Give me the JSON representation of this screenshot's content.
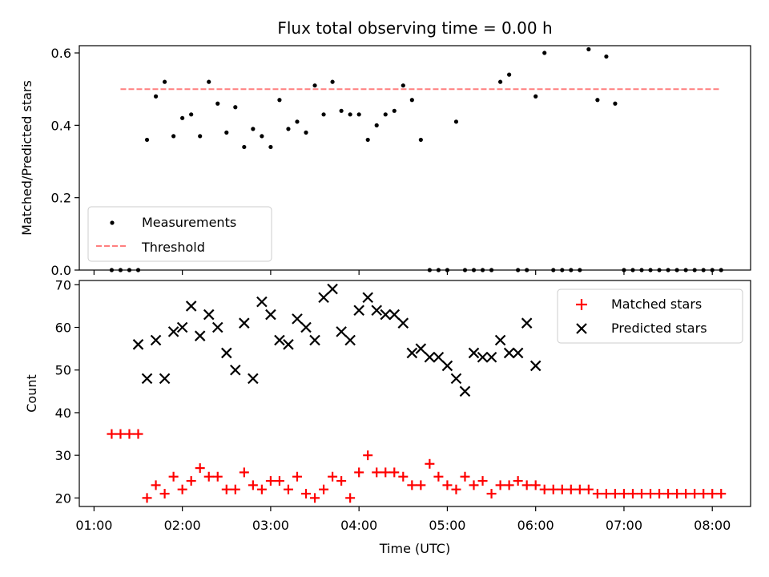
{
  "chart_data": [
    {
      "type": "scatter",
      "title": "Flux total observing time = 0.00 h",
      "xlabel": "",
      "ylabel": "Matched/Predicted stars",
      "ylim": [
        0,
        0.62
      ],
      "yticks": [
        "0.0",
        "0.2",
        "0.4",
        "0.6"
      ],
      "legend_position": "lower-left",
      "threshold": {
        "name": "Threshold",
        "value": 0.5,
        "x_start": "01:18",
        "x_end": "08:05",
        "color": "#ff7f7f"
      },
      "series": [
        {
          "name": "Measurements",
          "color": "#000000",
          "x": [
            "01:12",
            "01:18",
            "01:24",
            "01:30",
            "01:36",
            "01:42",
            "01:48",
            "01:54",
            "02:00",
            "02:06",
            "02:12",
            "02:18",
            "02:24",
            "02:30",
            "02:36",
            "02:42",
            "02:48",
            "02:54",
            "03:00",
            "03:06",
            "03:12",
            "03:18",
            "03:24",
            "03:30",
            "03:36",
            "03:42",
            "03:48",
            "03:54",
            "04:00",
            "04:06",
            "04:12",
            "04:18",
            "04:24",
            "04:30",
            "04:36",
            "04:42",
            "04:48",
            "04:54",
            "05:00",
            "05:06",
            "05:12",
            "05:18",
            "05:24",
            "05:30",
            "05:36",
            "05:42",
            "05:48",
            "05:54",
            "06:00",
            "06:06",
            "06:12",
            "06:18",
            "06:24",
            "06:30",
            "06:36",
            "06:42",
            "06:48",
            "06:54",
            "07:00",
            "07:06",
            "07:12",
            "07:18",
            "07:24",
            "07:30",
            "07:36",
            "07:42",
            "07:48",
            "07:54",
            "08:00",
            "08:06"
          ],
          "values": [
            0,
            0,
            0,
            0,
            0.36,
            0.48,
            0.52,
            0.37,
            0.42,
            0.43,
            0.37,
            0.52,
            0.46,
            0.38,
            0.45,
            0.34,
            0.39,
            0.37,
            0.34,
            0.47,
            0.39,
            0.41,
            0.38,
            0.51,
            0.43,
            0.52,
            0.44,
            0.43,
            0.43,
            0.36,
            0.4,
            0.43,
            0.44,
            0.51,
            0.47,
            0.36,
            0.0,
            0.0,
            0.0,
            0.41,
            0.0,
            0.0,
            0.0,
            0.0,
            0.52,
            0.54,
            0.0,
            0.0,
            0.48,
            0.6,
            0.0,
            0.0,
            0.0,
            0.0,
            0.61,
            0.47,
            0.59,
            0.46,
            0.0,
            0.0,
            0.0,
            0.0,
            0.0,
            0.0,
            0.0,
            0.0,
            0.0,
            0.0,
            0.0,
            0.0
          ]
        }
      ]
    },
    {
      "type": "scatter",
      "title": "",
      "xlabel": "Time (UTC)",
      "ylabel": "Count",
      "ylim": [
        18,
        71
      ],
      "yticks": [
        "20",
        "30",
        "40",
        "50",
        "60",
        "70"
      ],
      "xticks": [
        "01:00",
        "02:00",
        "03:00",
        "04:00",
        "05:00",
        "06:00",
        "07:00",
        "08:00"
      ],
      "xlim": [
        "00:50",
        "08:26"
      ],
      "legend_position": "top-right",
      "series": [
        {
          "name": "Matched stars",
          "marker": "+",
          "color": "#ff0000",
          "x": [
            "01:12",
            "01:18",
            "01:24",
            "01:30",
            "01:36",
            "01:42",
            "01:48",
            "01:54",
            "02:00",
            "02:06",
            "02:12",
            "02:18",
            "02:24",
            "02:30",
            "02:36",
            "02:42",
            "02:48",
            "02:54",
            "03:00",
            "03:06",
            "03:12",
            "03:18",
            "03:24",
            "03:30",
            "03:36",
            "03:42",
            "03:48",
            "03:54",
            "04:00",
            "04:06",
            "04:12",
            "04:18",
            "04:24",
            "04:30",
            "04:36",
            "04:42",
            "04:48",
            "04:54",
            "05:00",
            "05:06",
            "05:12",
            "05:18",
            "05:24",
            "05:30",
            "05:36",
            "05:42",
            "05:48",
            "05:54",
            "06:00",
            "06:06",
            "06:12",
            "06:18",
            "06:24",
            "06:30",
            "06:36",
            "06:42",
            "06:48",
            "06:54",
            "07:00",
            "07:06",
            "07:12",
            "07:18",
            "07:24",
            "07:30",
            "07:36",
            "07:42",
            "07:48",
            "07:54",
            "08:00",
            "08:06"
          ],
          "values": [
            35,
            35,
            35,
            35,
            20,
            23,
            21,
            25,
            22,
            24,
            27,
            25,
            25,
            22,
            22,
            26,
            23,
            22,
            24,
            24,
            22,
            25,
            21,
            20,
            22,
            25,
            24,
            20,
            26,
            30,
            26,
            26,
            26,
            25,
            23,
            23,
            28,
            25,
            23,
            22,
            25,
            23,
            24,
            21,
            23,
            23,
            24,
            23,
            23,
            22,
            22,
            22,
            22,
            22,
            22,
            21,
            21,
            21,
            21,
            21,
            21,
            21,
            21,
            21,
            21,
            21,
            21,
            21,
            21,
            21
          ]
        },
        {
          "name": "Predicted stars",
          "marker": "x",
          "color": "#000000",
          "x": [
            "01:30",
            "01:36",
            "01:42",
            "01:48",
            "01:54",
            "02:00",
            "02:06",
            "02:12",
            "02:18",
            "02:24",
            "02:30",
            "02:36",
            "02:42",
            "02:48",
            "02:54",
            "03:00",
            "03:06",
            "03:12",
            "03:18",
            "03:24",
            "03:30",
            "03:36",
            "03:42",
            "03:48",
            "03:54",
            "04:00",
            "04:06",
            "04:12",
            "04:18",
            "04:24",
            "04:30",
            "04:36",
            "04:42",
            "04:48",
            "04:54",
            "05:00",
            "05:06",
            "05:12",
            "05:18",
            "05:24",
            "05:30",
            "05:36",
            "05:42",
            "05:48",
            "05:54",
            "06:00"
          ],
          "values": [
            56,
            48,
            57,
            48,
            59,
            60,
            65,
            58,
            63,
            60,
            54,
            50,
            61,
            48,
            66,
            63,
            57,
            56,
            62,
            60,
            57,
            67,
            69,
            59,
            57,
            64,
            67,
            64,
            63,
            63,
            61,
            54,
            55,
            53,
            53,
            51,
            48,
            45,
            54,
            53,
            53,
            57,
            54,
            54,
            61,
            51
          ]
        }
      ]
    }
  ]
}
